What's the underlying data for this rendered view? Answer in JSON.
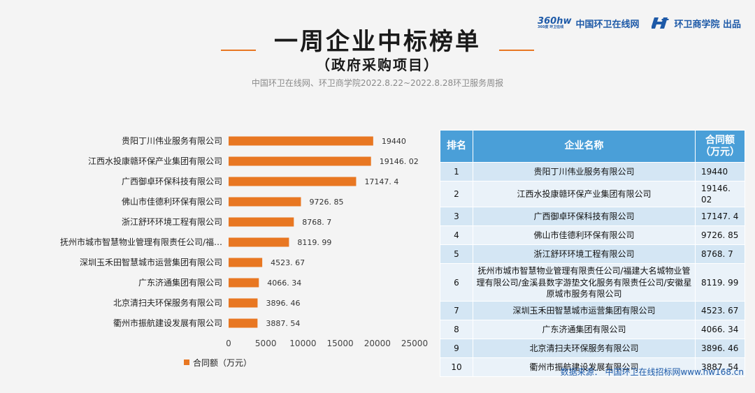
{
  "header": {
    "brand_site": "中国环卫在线网",
    "brand_academy": "环卫商学院 出品",
    "brand_logo_text": "360hw",
    "brand_logo_sub": "360度 环卫在线",
    "title": "一周企业中标榜单",
    "subtitle": "（政府采购项目）",
    "source_line": "中国环卫在线网、环卫商学院2022.8.22~2022.8.28环卫服务周报"
  },
  "colors": {
    "bar": "#e87722",
    "header": "#4a9fd8",
    "brand": "#1e5aa8"
  },
  "chart_data": {
    "type": "bar",
    "orientation": "horizontal",
    "categories": [
      "贵阳丁川伟业服务有限公司",
      "江西水投康赣环保产业集团有限公司",
      "广西御卓环保科技有限公司",
      "佛山市佳德利环保有限公司",
      "浙江舒环环境工程有限公司",
      "抚州市城市智慧物业管理有限责任公司/福…",
      "深圳玉禾田智慧城市运营集团有限公司",
      "广东济通集团有限公司",
      "北京清扫夫环保服务有限公司",
      "衢州市振航建设发展有限公司"
    ],
    "values": [
      19440,
      19146.02,
      17147.4,
      9726.85,
      8768.7,
      8119.99,
      4523.67,
      4066.34,
      3896.46,
      3887.54
    ],
    "value_labels": [
      "19440",
      "19146. 02",
      "17147. 4",
      "9726. 85",
      "8768. 7",
      "8119. 99",
      "4523. 67",
      "4066. 34",
      "3896. 46",
      "3887. 54"
    ],
    "xlim": [
      0,
      25000
    ],
    "xticks": [
      0,
      5000,
      10000,
      15000,
      20000,
      25000
    ],
    "legend": "合同额（万元）",
    "legend_position": "bottom-center",
    "grid": false
  },
  "table": {
    "headers": [
      "排名",
      "企业名称",
      "合同额\n（万元）"
    ],
    "rows": [
      {
        "rank": "1",
        "name": "贵阳丁川伟业服务有限公司",
        "amount": "19440"
      },
      {
        "rank": "2",
        "name": "江西水投康赣环保产业集团有限公司",
        "amount": "19146. 02"
      },
      {
        "rank": "3",
        "name": "广西御卓环保科技有限公司",
        "amount": "17147. 4"
      },
      {
        "rank": "4",
        "name": "佛山市佳德利环保有限公司",
        "amount": "9726. 85"
      },
      {
        "rank": "5",
        "name": "浙江舒环环境工程有限公司",
        "amount": "8768. 7"
      },
      {
        "rank": "6",
        "name": "抚州市城市智慧物业管理有限责任公司/福建大名城物业管理有限公司/金溪县数字游垫文化服务有限责任公司/安徽星原城市服务有限公司",
        "amount": "8119. 99"
      },
      {
        "rank": "7",
        "name": "深圳玉禾田智慧城市运营集团有限公司",
        "amount": "4523. 67"
      },
      {
        "rank": "8",
        "name": "广东济通集团有限公司",
        "amount": "4066. 34"
      },
      {
        "rank": "9",
        "name": "北京清扫夫环保服务有限公司",
        "amount": "3896. 46"
      },
      {
        "rank": "10",
        "name": "衢州市振航建设发展有限公司",
        "amount": "3887. 54"
      }
    ],
    "source": "数据来源： 中国环卫在线招标网www.hw168.cn"
  }
}
